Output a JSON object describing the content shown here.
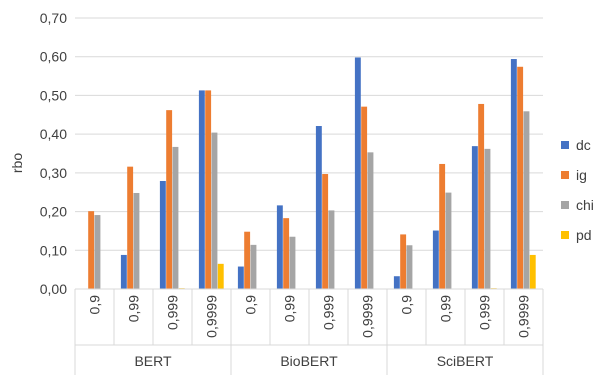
{
  "chart_data": {
    "type": "bar",
    "ylabel": "rbo",
    "ylim": [
      0,
      0.7
    ],
    "ytick_step": 0.1,
    "ytick_labels": [
      "0,00",
      "0,10",
      "0,20",
      "0,30",
      "0,40",
      "0,50",
      "0,60",
      "0,70"
    ],
    "grid": true,
    "legend_position": "right",
    "groups": [
      {
        "label": "BERT",
        "categories": [
          "0,9",
          "0,99",
          "0,999",
          "0,9999"
        ]
      },
      {
        "label": "BioBERT",
        "categories": [
          "0,9",
          "0,99",
          "0,999",
          "0,9999"
        ]
      },
      {
        "label": "SciBERT",
        "categories": [
          "0,9",
          "0,99",
          "0,999",
          "0,9999"
        ]
      }
    ],
    "series": [
      {
        "name": "dc",
        "color": "#4472C4",
        "values": [
          0.0,
          0.088,
          0.279,
          0.513,
          0.058,
          0.216,
          0.421,
          0.598,
          0.033,
          0.151,
          0.369,
          0.594
        ]
      },
      {
        "name": "ig",
        "color": "#ED7D31",
        "values": [
          0.201,
          0.316,
          0.462,
          0.513,
          0.148,
          0.183,
          0.297,
          0.471,
          0.141,
          0.323,
          0.478,
          0.574
        ]
      },
      {
        "name": "chi",
        "color": "#A5A5A5",
        "values": [
          0.191,
          0.248,
          0.367,
          0.404,
          0.114,
          0.135,
          0.203,
          0.353,
          0.113,
          0.249,
          0.362,
          0.459
        ]
      },
      {
        "name": "pd",
        "color": "#FFC000",
        "values": [
          0.0,
          0.0,
          0.002,
          0.065,
          0.0,
          0.0,
          0.0,
          0.0,
          0.0,
          0.0,
          0.002,
          0.088
        ]
      }
    ]
  }
}
